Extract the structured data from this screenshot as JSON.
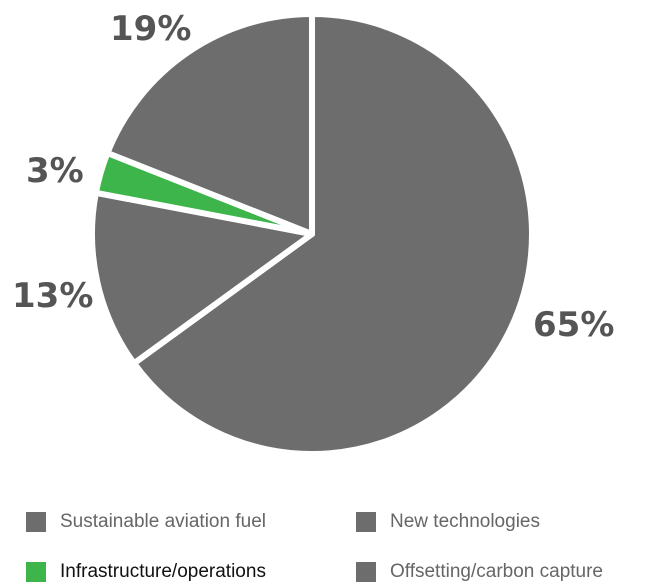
{
  "chart_data": {
    "type": "pie",
    "title": "",
    "slices": [
      {
        "label": "New technologies",
        "value": 65,
        "display": "65%",
        "color": "#6d6d6d"
      },
      {
        "label": "Offsetting/carbon capture",
        "value": 13,
        "display": "13%",
        "color": "#6d6d6d"
      },
      {
        "label": "Infrastructure/operations",
        "value": 3,
        "display": "3%",
        "color": "#3db54a"
      },
      {
        "label": "Sustainable aviation fuel",
        "value": 19,
        "display": "19%",
        "color": "#6d6d6d"
      }
    ],
    "legend_position": "bottom",
    "legend": [
      {
        "label": "Sustainable aviation fuel",
        "color": "#6d6d6d"
      },
      {
        "label": "New technologies",
        "color": "#6d6d6d"
      },
      {
        "label": "Infrastructure/operations",
        "color": "#3db54a"
      },
      {
        "label": "Offsetting/carbon capture",
        "color": "#6d6d6d"
      }
    ]
  }
}
